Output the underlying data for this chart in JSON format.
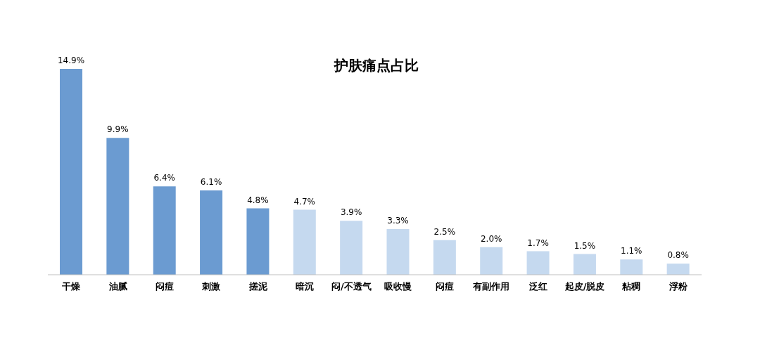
{
  "chart_data": {
    "type": "bar",
    "title": "护肤痛点占比",
    "categories": [
      "干燥",
      "油腻",
      "闷痘",
      "刺激",
      "搓泥",
      "暗沉",
      "闷/不透气",
      "吸收慢",
      "闷痘",
      "有副作用",
      "泛红",
      "起皮/脱皮",
      "粘稠",
      "浮粉"
    ],
    "values": [
      14.9,
      9.9,
      6.4,
      6.1,
      4.8,
      4.7,
      3.9,
      3.3,
      2.5,
      2.0,
      1.7,
      1.5,
      1.1,
      0.8
    ],
    "value_labels": [
      "14.9%",
      "9.9%",
      "6.4%",
      "6.1%",
      "4.8%",
      "4.7%",
      "3.9%",
      "3.3%",
      "2.5%",
      "2.0%",
      "1.7%",
      "1.5%",
      "1.1%",
      "0.8%"
    ],
    "colors": [
      "#6b9bd1",
      "#6b9bd1",
      "#6b9bd1",
      "#6b9bd1",
      "#6b9bd1",
      "#c5d9ef",
      "#c5d9ef",
      "#c5d9ef",
      "#c5d9ef",
      "#c5d9ef",
      "#c5d9ef",
      "#c5d9ef",
      "#c5d9ef",
      "#c5d9ef"
    ],
    "grid": false,
    "legend": false
  }
}
